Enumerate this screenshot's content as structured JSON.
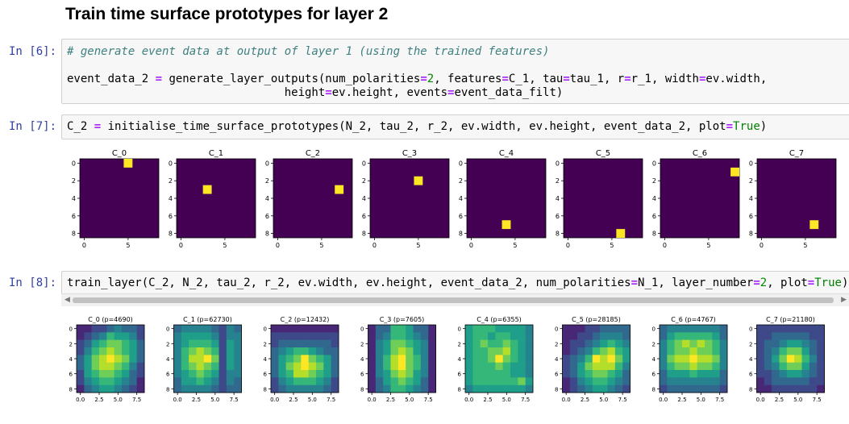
{
  "heading": "Train time surface prototypes for layer 2",
  "cells": [
    {
      "prompt": "In [6]:",
      "lines": [
        [
          {
            "t": "# generate event data at output of layer 1 (using the trained features)",
            "c": "cm"
          }
        ],
        [],
        [
          {
            "t": "event_data_2 "
          },
          {
            "t": "=",
            "c": "op"
          },
          {
            "t": " generate_layer_outputs(num_polarities"
          },
          {
            "t": "=",
            "c": "op"
          },
          {
            "t": "2",
            "c": "num"
          },
          {
            "t": ", features"
          },
          {
            "t": "=",
            "c": "op"
          },
          {
            "t": "C_1, tau"
          },
          {
            "t": "=",
            "c": "op"
          },
          {
            "t": "tau_1, r"
          },
          {
            "t": "=",
            "c": "op"
          },
          {
            "t": "r_1, width"
          },
          {
            "t": "=",
            "c": "op"
          },
          {
            "t": "ev.width,"
          }
        ],
        [
          {
            "t": "                                height"
          },
          {
            "t": "=",
            "c": "op"
          },
          {
            "t": "ev.height, events"
          },
          {
            "t": "=",
            "c": "op"
          },
          {
            "t": "event_data_filt)"
          }
        ]
      ]
    },
    {
      "prompt": "In [7]:",
      "lines": [
        [
          {
            "t": "C_2 "
          },
          {
            "t": "=",
            "c": "op"
          },
          {
            "t": " initialise_time_surface_prototypes(N_2, tau_2, r_2, ev.width, ev.height, event_data_2, plot"
          },
          {
            "t": "=",
            "c": "op"
          },
          {
            "t": "True",
            "c": "kw"
          },
          {
            "t": ")"
          }
        ]
      ]
    },
    {
      "prompt": "In [8]:",
      "lines": [
        [
          {
            "t": "train_layer(C_2, N_2, tau_2, r_2, ev.width, ev.height, event_data_2, num_polarities"
          },
          {
            "t": "=",
            "c": "op"
          },
          {
            "t": "N_1, layer_number"
          },
          {
            "t": "=",
            "c": "op"
          },
          {
            "t": "2",
            "c": "num"
          },
          {
            "t": ", plot"
          },
          {
            "t": "=",
            "c": "op"
          },
          {
            "t": "True",
            "c": "kw"
          },
          {
            "t": ")"
          }
        ]
      ]
    }
  ],
  "scrollbar": {
    "left_arrow": "◀",
    "right_arrow": "▶"
  },
  "plots_init": {
    "titles": [
      "C_0",
      "C_1",
      "C_2",
      "C_3",
      "C_4",
      "C_5",
      "C_6",
      "C_7"
    ],
    "xticks": [
      "0",
      "5"
    ],
    "yticks": [
      "0",
      "2",
      "4",
      "6",
      "8"
    ],
    "background": "#440154",
    "highlight": "#fde725",
    "points": [
      [
        5,
        0
      ],
      [
        3,
        3
      ],
      [
        7,
        3
      ],
      [
        5,
        2
      ],
      [
        4,
        7
      ],
      [
        6,
        8
      ],
      [
        8,
        1
      ],
      [
        6,
        7
      ]
    ]
  },
  "plots_trained": {
    "titles": [
      "C_0 (p=4690)",
      "C_1 (p=62730)",
      "C_2 (p=12432)",
      "C_3 (p=7605)",
      "C_4 (p=6355)",
      "C_5 (p=28185)",
      "C_6 (p=4767)",
      "C_7 (p=21180)"
    ],
    "xticks": [
      "0.0",
      "2.5",
      "5.0",
      "7.5"
    ],
    "yticks": [
      "0",
      "2",
      "4",
      "6",
      "8"
    ],
    "colormap": [
      "#440154",
      "#482777",
      "#3e4989",
      "#31688e",
      "#26828e",
      "#1f9e89",
      "#35b779",
      "#6ece58",
      "#b5de2b",
      "#fde725"
    ],
    "grids": [
      [
        [
          1,
          1,
          2,
          2,
          3,
          4,
          3,
          3,
          2
        ],
        [
          1,
          2,
          3,
          4,
          6,
          5,
          5,
          4,
          2
        ],
        [
          2,
          3,
          5,
          6,
          7,
          7,
          6,
          5,
          3
        ],
        [
          2,
          4,
          6,
          7,
          8,
          7,
          6,
          5,
          3
        ],
        [
          3,
          5,
          7,
          8,
          9,
          8,
          7,
          5,
          3
        ],
        [
          3,
          5,
          7,
          8,
          8,
          7,
          6,
          4,
          2
        ],
        [
          2,
          5,
          6,
          7,
          7,
          6,
          5,
          3,
          2
        ],
        [
          2,
          4,
          5,
          6,
          6,
          5,
          4,
          3,
          1
        ],
        [
          1,
          3,
          4,
          5,
          5,
          4,
          3,
          2,
          1
        ]
      ],
      [
        [
          3,
          4,
          4,
          4,
          4,
          3,
          2,
          4,
          3
        ],
        [
          4,
          5,
          5,
          5,
          5,
          4,
          2,
          4,
          4
        ],
        [
          4,
          5,
          6,
          6,
          6,
          5,
          2,
          5,
          4
        ],
        [
          4,
          6,
          7,
          8,
          7,
          6,
          2,
          5,
          4
        ],
        [
          4,
          6,
          8,
          8,
          9,
          7,
          2,
          5,
          4
        ],
        [
          4,
          6,
          7,
          8,
          7,
          6,
          2,
          5,
          4
        ],
        [
          4,
          5,
          6,
          7,
          6,
          5,
          2,
          4,
          4
        ],
        [
          3,
          5,
          5,
          6,
          5,
          4,
          2,
          4,
          3
        ],
        [
          3,
          4,
          4,
          4,
          4,
          3,
          2,
          3,
          3
        ]
      ],
      [
        [
          1,
          1,
          1,
          1,
          1,
          1,
          1,
          1,
          1
        ],
        [
          2,
          2,
          2,
          2,
          2,
          2,
          2,
          2,
          2
        ],
        [
          2,
          3,
          3,
          3,
          3,
          3,
          3,
          3,
          2
        ],
        [
          3,
          4,
          5,
          6,
          6,
          5,
          4,
          3,
          3
        ],
        [
          3,
          5,
          6,
          7,
          9,
          7,
          6,
          5,
          3
        ],
        [
          3,
          5,
          7,
          8,
          9,
          8,
          7,
          5,
          3
        ],
        [
          3,
          5,
          6,
          8,
          8,
          7,
          6,
          5,
          3
        ],
        [
          2,
          4,
          5,
          6,
          6,
          6,
          5,
          4,
          2
        ],
        [
          2,
          3,
          4,
          4,
          4,
          4,
          4,
          3,
          2
        ]
      ],
      [
        [
          1,
          3,
          3,
          6,
          6,
          5,
          3,
          3,
          1
        ],
        [
          1,
          3,
          4,
          6,
          6,
          5,
          4,
          3,
          1
        ],
        [
          1,
          4,
          5,
          7,
          7,
          6,
          5,
          4,
          1
        ],
        [
          1,
          4,
          5,
          7,
          8,
          7,
          5,
          4,
          1
        ],
        [
          1,
          4,
          6,
          8,
          9,
          7,
          6,
          4,
          1
        ],
        [
          1,
          4,
          6,
          8,
          9,
          7,
          6,
          4,
          1
        ],
        [
          1,
          4,
          5,
          7,
          8,
          7,
          5,
          4,
          1
        ],
        [
          1,
          3,
          5,
          6,
          7,
          6,
          5,
          3,
          1
        ],
        [
          1,
          3,
          4,
          6,
          6,
          5,
          4,
          3,
          1
        ]
      ],
      [
        [
          5,
          6,
          6,
          6,
          5,
          5,
          5,
          5,
          4
        ],
        [
          5,
          6,
          6,
          5,
          6,
          6,
          5,
          5,
          4
        ],
        [
          5,
          6,
          7,
          6,
          6,
          7,
          6,
          5,
          4
        ],
        [
          5,
          6,
          6,
          7,
          7,
          8,
          6,
          5,
          4
        ],
        [
          5,
          6,
          6,
          7,
          9,
          7,
          6,
          5,
          4
        ],
        [
          5,
          6,
          6,
          6,
          7,
          6,
          5,
          5,
          4
        ],
        [
          5,
          6,
          6,
          6,
          6,
          6,
          5,
          5,
          4
        ],
        [
          5,
          6,
          6,
          6,
          6,
          6,
          6,
          7,
          5
        ],
        [
          4,
          5,
          5,
          5,
          5,
          5,
          5,
          5,
          4
        ]
      ],
      [
        [
          1,
          1,
          1,
          2,
          2,
          3,
          3,
          3,
          3
        ],
        [
          1,
          1,
          2,
          2,
          3,
          4,
          4,
          4,
          3
        ],
        [
          1,
          2,
          2,
          3,
          4,
          5,
          6,
          5,
          4
        ],
        [
          1,
          2,
          3,
          4,
          6,
          7,
          8,
          6,
          5
        ],
        [
          2,
          3,
          4,
          6,
          9,
          8,
          9,
          7,
          5
        ],
        [
          2,
          3,
          5,
          7,
          8,
          8,
          8,
          6,
          4
        ],
        [
          2,
          3,
          5,
          6,
          7,
          7,
          6,
          5,
          3
        ],
        [
          1,
          2,
          4,
          5,
          6,
          6,
          5,
          4,
          3
        ],
        [
          1,
          2,
          3,
          4,
          5,
          5,
          4,
          3,
          2
        ]
      ],
      [
        [
          3,
          4,
          4,
          4,
          4,
          4,
          4,
          4,
          3
        ],
        [
          3,
          5,
          6,
          6,
          6,
          6,
          6,
          5,
          3
        ],
        [
          4,
          6,
          7,
          8,
          7,
          8,
          7,
          6,
          4
        ],
        [
          4,
          6,
          7,
          7,
          8,
          7,
          7,
          6,
          4
        ],
        [
          4,
          7,
          8,
          8,
          9,
          8,
          8,
          7,
          4
        ],
        [
          4,
          6,
          7,
          7,
          8,
          7,
          7,
          6,
          4
        ],
        [
          3,
          5,
          5,
          5,
          6,
          5,
          5,
          5,
          3
        ],
        [
          3,
          4,
          4,
          4,
          4,
          4,
          4,
          4,
          3
        ],
        [
          2,
          3,
          3,
          3,
          3,
          3,
          3,
          3,
          2
        ]
      ],
      [
        [
          2,
          2,
          2,
          2,
          2,
          2,
          2,
          2,
          2
        ],
        [
          2,
          2,
          3,
          3,
          3,
          3,
          3,
          2,
          2
        ],
        [
          2,
          3,
          3,
          4,
          5,
          5,
          4,
          3,
          2
        ],
        [
          2,
          3,
          4,
          6,
          7,
          7,
          5,
          3,
          2
        ],
        [
          2,
          3,
          5,
          7,
          9,
          8,
          6,
          4,
          2
        ],
        [
          2,
          3,
          4,
          6,
          7,
          7,
          5,
          3,
          2
        ],
        [
          2,
          2,
          3,
          4,
          5,
          5,
          4,
          3,
          2
        ],
        [
          1,
          2,
          3,
          3,
          3,
          3,
          3,
          2,
          2
        ],
        [
          1,
          1,
          2,
          2,
          2,
          2,
          2,
          2,
          1
        ]
      ]
    ]
  }
}
